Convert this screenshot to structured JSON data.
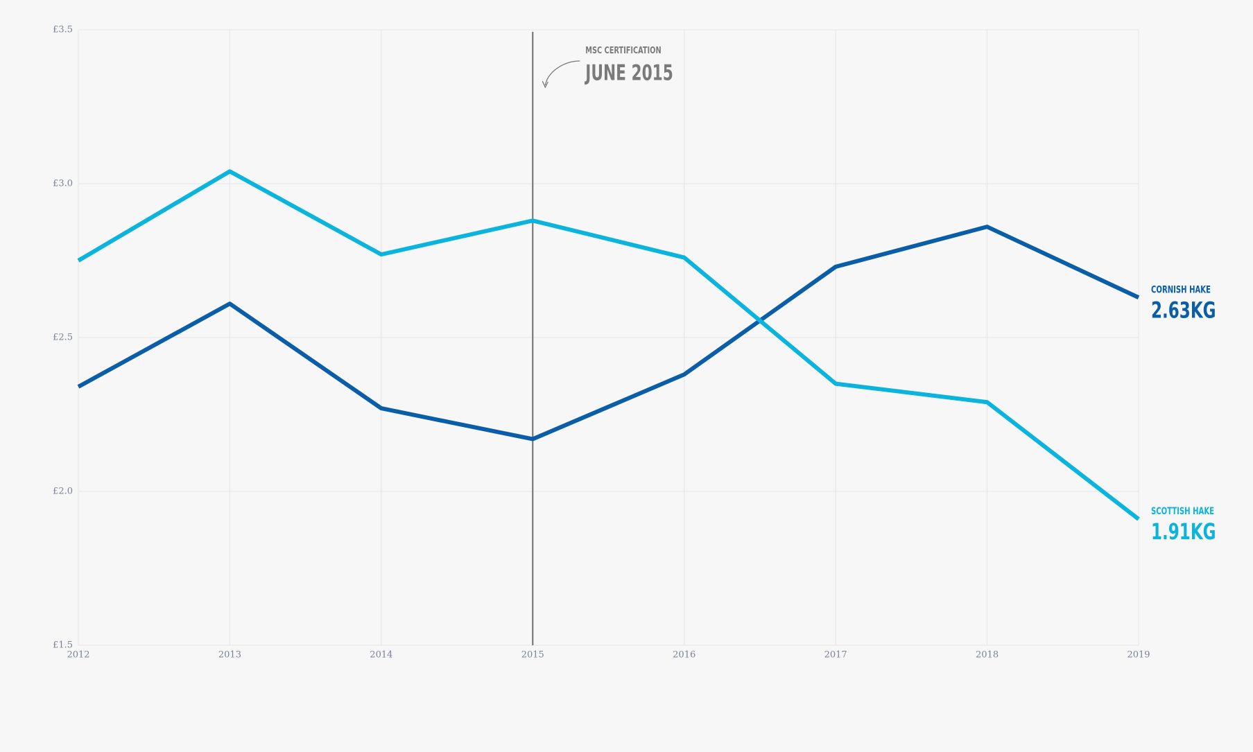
{
  "chart_data": {
    "type": "line",
    "x": [
      2012,
      2013,
      2014,
      2015,
      2016,
      2017,
      2018,
      2019
    ],
    "xlim": [
      2012,
      2019
    ],
    "xticks": [
      2012,
      2013,
      2014,
      2015,
      2016,
      2017,
      2018,
      2019
    ],
    "ylim": [
      1.5,
      3.5
    ],
    "yticks": [
      {
        "value": 1.5,
        "label": "£1.5"
      },
      {
        "value": 2.0,
        "label": "£2.0"
      },
      {
        "value": 2.5,
        "label": "£2.5"
      },
      {
        "value": 3.0,
        "label": "£3.0"
      },
      {
        "value": 3.5,
        "label": "£3.5"
      }
    ],
    "grid": true,
    "series": [
      {
        "name": "CORNISH HAKE",
        "color": "#0a5ea8",
        "values": [
          2.34,
          2.61,
          2.27,
          2.17,
          2.38,
          2.73,
          2.86,
          2.63
        ],
        "value_labels": [
          null,
          null,
          null,
          null,
          null,
          null,
          null,
          "2.63KG"
        ]
      },
      {
        "name": "SCOTTISH HAKE",
        "color": "#0ab4dc",
        "values": [
          2.75,
          3.04,
          2.77,
          2.88,
          2.76,
          2.35,
          2.29,
          1.91
        ],
        "value_labels": [
          null,
          null,
          null,
          null,
          null,
          null,
          null,
          "1.91KG"
        ]
      }
    ],
    "annotation": {
      "x": 2015,
      "label": "MSC CERTIFICATION",
      "text": "JUNE 2015"
    }
  }
}
